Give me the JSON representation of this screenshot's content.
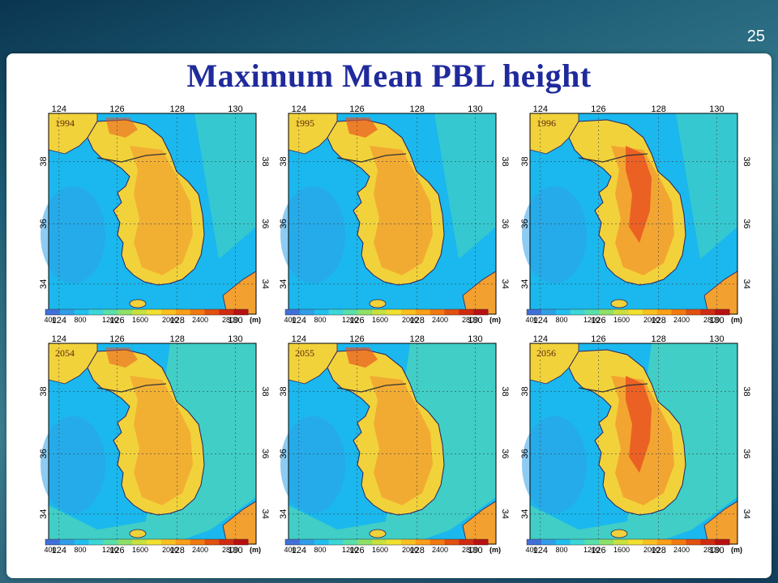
{
  "slide": {
    "number": "25",
    "title": "Maximum Mean PBL height"
  },
  "colorbar": {
    "ticks": [
      "400",
      "800",
      "1200",
      "1600",
      "2000",
      "2400",
      "2800"
    ],
    "unit": "(m)",
    "colors": [
      "#3f6fd8",
      "#2f9ee8",
      "#1fc0f0",
      "#3cd6d8",
      "#58e0a8",
      "#8ee068",
      "#c8e040",
      "#f0e030",
      "#f8c020",
      "#f8a018",
      "#f07a10",
      "#e05010",
      "#d02a10",
      "#b81010"
    ]
  },
  "axes": {
    "lon_ticks": [
      "124",
      "126",
      "128",
      "130"
    ],
    "lat_ticks": [
      "34",
      "36",
      "38"
    ]
  },
  "maps": [
    {
      "year": "1994",
      "intensity": 1
    },
    {
      "year": "1995",
      "intensity": 2
    },
    {
      "year": "1996",
      "intensity": 3
    },
    {
      "year": "2054",
      "intensity": 1
    },
    {
      "year": "2055",
      "intensity": 2
    },
    {
      "year": "2056",
      "intensity": 3
    }
  ],
  "palette": {
    "sea_base": "#1ab8ee",
    "sea_green": "#4ed6b8",
    "land_mid": "#f2d23a",
    "land_high": "#f2a030",
    "land_peak": "#e85020",
    "coast": "#2a2060",
    "grid": "#444444"
  }
}
